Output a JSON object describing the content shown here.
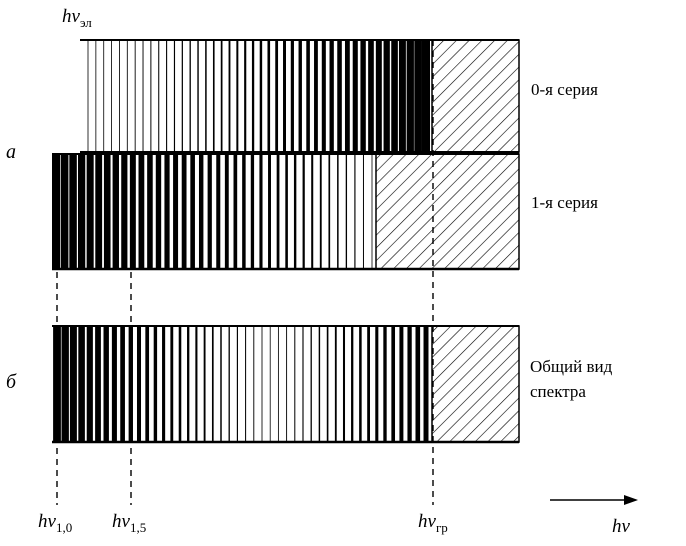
{
  "labels": {
    "top_base": "hν",
    "top_sub": "эл",
    "panel_a": "а",
    "panel_b": "б",
    "series0": "0-я серия",
    "series1": "1-я серия",
    "general_line1": "Общий вид",
    "general_line2": "спектра",
    "x10_base": "hν",
    "x10_sub": "1,0",
    "x15_base": "hν",
    "x15_sub": "1,5",
    "xgr_base": "hν",
    "xgr_sub": "гр",
    "axis_base": "hν"
  },
  "colors": {
    "ink": "#000000",
    "paper": "#ffffff"
  }
}
